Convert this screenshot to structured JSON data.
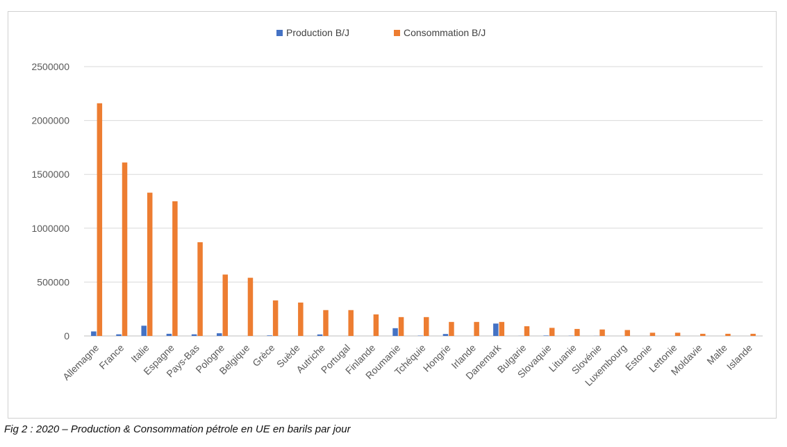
{
  "caption": "Fig 2 : 2020 – Production & Consommation pétrole en UE en barils par jour",
  "chart_data": {
    "type": "bar",
    "title": "",
    "xlabel": "",
    "ylabel": "",
    "ylim": [
      0,
      2500000
    ],
    "yticks": [
      "0",
      "500000",
      "1000000",
      "1500000",
      "2000000",
      "2500000"
    ],
    "grid": true,
    "legend_position": "top-center",
    "categories": [
      "Allemagne",
      "France",
      "Italie",
      "Espagne",
      "Pays-Bas",
      "Pologne",
      "Belgique",
      "Grèce",
      "Suède",
      "Autriche",
      "Portugal",
      "Finlande",
      "Roumanie",
      "Tchéquie",
      "Hongrie",
      "Irlande",
      "Danemark",
      "Bulgarie",
      "Slovaquie",
      "Lituanie",
      "Slovénie",
      "Luxembourg",
      "Estonie",
      "Lettonie",
      "Moldavie",
      "Malte",
      "Islande"
    ],
    "series": [
      {
        "name": "Production B/J",
        "color": "#4472C4",
        "values": [
          42000,
          15000,
          95000,
          20000,
          15000,
          25000,
          0,
          5000,
          0,
          14000,
          0,
          0,
          72000,
          3000,
          18000,
          0,
          115000,
          1000,
          4000,
          2000,
          1000,
          0,
          0,
          0,
          0,
          0,
          0
        ]
      },
      {
        "name": "Consommation B/J",
        "color": "#ED7D31",
        "values": [
          2160000,
          1610000,
          1330000,
          1250000,
          870000,
          570000,
          540000,
          330000,
          310000,
          240000,
          240000,
          200000,
          175000,
          175000,
          130000,
          130000,
          130000,
          90000,
          75000,
          65000,
          60000,
          55000,
          30000,
          30000,
          20000,
          20000,
          20000
        ]
      }
    ]
  }
}
